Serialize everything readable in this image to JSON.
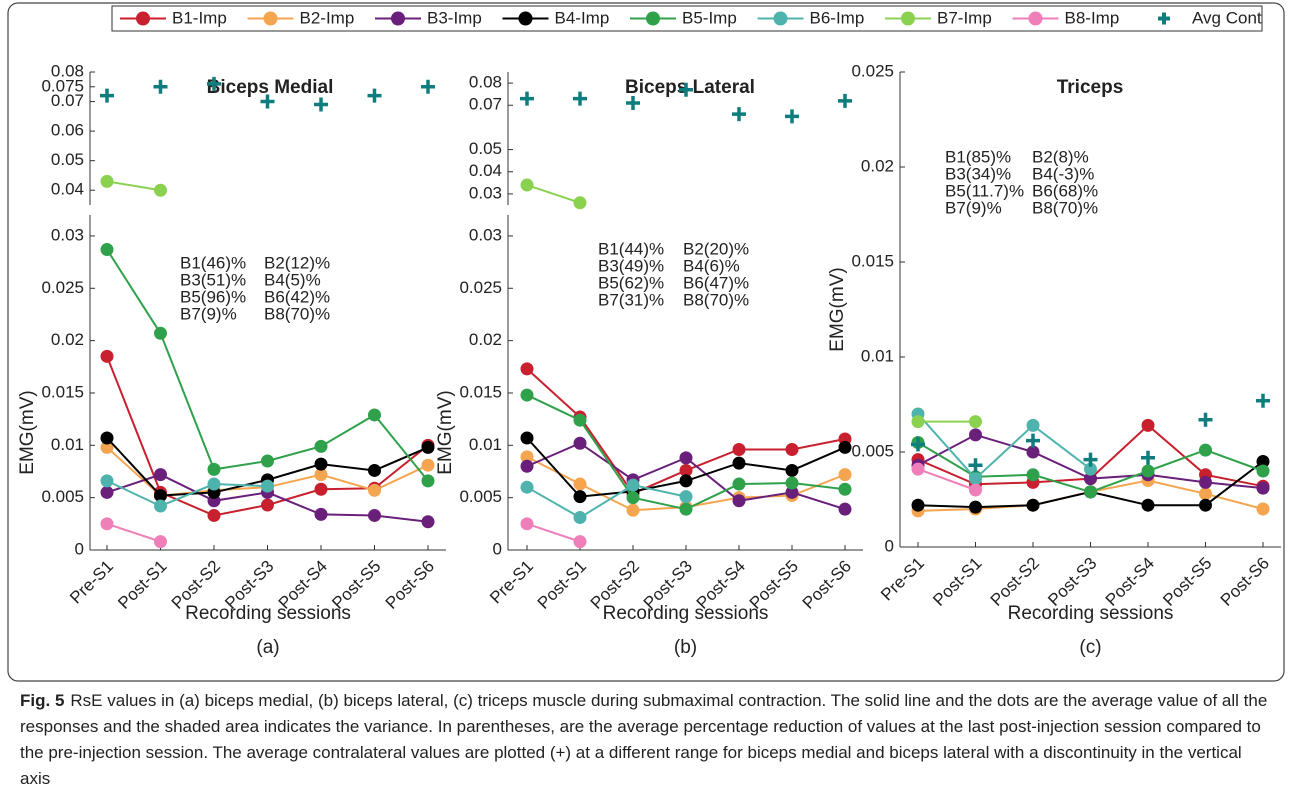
{
  "chart_data": [
    {
      "type": "line",
      "title": "Biceps Medial",
      "xlabel": "Recording sessions",
      "sublabel": "(a)",
      "ylabel": "EMG(mV)",
      "categories": [
        "Pre-S1",
        "Post-S1",
        "Post-S2",
        "Post-S3",
        "Post-S4",
        "Post-S5",
        "Post-S6"
      ],
      "ylim": [
        0,
        0.032
      ],
      "yticks": [
        0,
        0.005,
        0.01,
        0.015,
        0.02,
        0.025,
        0.03
      ],
      "ylim_upper": [
        0.035,
        0.08
      ],
      "yticks_upper": [
        0.04,
        0.05,
        0.06,
        0.07,
        0.075,
        0.08
      ],
      "series": [
        {
          "name": "B1-Imp",
          "color": "#c8202e",
          "values": [
            0.0185,
            0.0055,
            0.0033,
            0.0043,
            0.0058,
            0.0059,
            0.01
          ]
        },
        {
          "name": "B2-Imp",
          "color": "#f5a54f",
          "values": [
            0.0098,
            0.0052,
            0.0057,
            0.006,
            0.0072,
            0.0057,
            0.0081
          ]
        },
        {
          "name": "B3-Imp",
          "color": "#6a1f7a",
          "values": [
            0.0055,
            0.0072,
            0.0047,
            0.0055,
            0.0034,
            0.0033,
            0.0027
          ]
        },
        {
          "name": "B4-Imp",
          "color": "#000000",
          "values": [
            0.0107,
            0.0052,
            0.0055,
            0.0067,
            0.0082,
            0.0076,
            0.0098
          ]
        },
        {
          "name": "B5-Imp",
          "color": "#2ea14a",
          "values": [
            0.0287,
            0.0207,
            0.0077,
            0.0085,
            0.0099,
            0.0129,
            0.0066
          ]
        },
        {
          "name": "B6-Imp",
          "color": "#4fb3ad",
          "values": [
            0.0066,
            0.0042,
            0.0063,
            0.0061,
            null,
            null,
            null
          ]
        },
        {
          "name": "B7-Imp",
          "color": "#8bd150",
          "axis": "upper",
          "values": [
            0.043,
            0.04,
            null,
            null,
            null,
            null,
            null
          ]
        },
        {
          "name": "B8-Imp",
          "color": "#ef7fb8",
          "values": [
            0.0025,
            0.0008,
            null,
            null,
            null,
            null,
            null
          ]
        },
        {
          "name": "Avg Cont",
          "color": "#0f7d7d",
          "marker": "plus",
          "axis": "upper",
          "values": [
            0.072,
            0.075,
            0.076,
            0.07,
            0.069,
            0.072,
            0.075
          ]
        }
      ],
      "annotations": [
        {
          "text": "B1(46)%",
          "color": "#c8202e"
        },
        {
          "text": "B2(12)%",
          "color": "#f5a54f"
        },
        {
          "text": "B3(51)%",
          "color": "#6a1f7a"
        },
        {
          "text": "B4(5)%",
          "color": "#000000"
        },
        {
          "text": "B5(96)%",
          "color": "#2ea14a"
        },
        {
          "text": "B6(42)%",
          "color": "#4fb3ad"
        },
        {
          "text": "B7(9)%",
          "color": "#8bd150"
        },
        {
          "text": "B8(70)%",
          "color": "#ef7fb8"
        }
      ]
    },
    {
      "type": "line",
      "title": "Biceps Lateral",
      "xlabel": "Recording sessions",
      "sublabel": "(b)",
      "ylabel": "EMG(mV)",
      "categories": [
        "Pre-S1",
        "Post-S1",
        "Post-S2",
        "Post-S3",
        "Post-S4",
        "Post-S5",
        "Post-S6"
      ],
      "ylim": [
        0,
        0.032
      ],
      "yticks": [
        0,
        0.005,
        0.01,
        0.015,
        0.02,
        0.025,
        0.03
      ],
      "ylim_upper": [
        0.025,
        0.085
      ],
      "yticks_upper": [
        0.03,
        0.04,
        0.05,
        0.07,
        0.08
      ],
      "series": [
        {
          "name": "B1-Imp",
          "color": "#c8202e",
          "values": [
            0.0173,
            0.0127,
            0.0054,
            0.0076,
            0.0096,
            0.0096,
            0.0106
          ]
        },
        {
          "name": "B2-Imp",
          "color": "#f5a54f",
          "values": [
            0.0089,
            0.0063,
            0.0038,
            0.0041,
            0.005,
            0.0052,
            0.0072
          ]
        },
        {
          "name": "B3-Imp",
          "color": "#6a1f7a",
          "values": [
            0.008,
            0.0102,
            0.0067,
            0.0088,
            0.0047,
            0.0055,
            0.0039
          ]
        },
        {
          "name": "B4-Imp",
          "color": "#000000",
          "values": [
            0.0107,
            0.0051,
            0.0056,
            0.0066,
            0.0083,
            0.0076,
            0.0098
          ]
        },
        {
          "name": "B5-Imp",
          "color": "#2ea14a",
          "values": [
            0.0148,
            0.0124,
            0.005,
            0.0039,
            0.0063,
            0.0064,
            0.0058
          ]
        },
        {
          "name": "B6-Imp",
          "color": "#4fb3ad",
          "values": [
            0.006,
            0.0031,
            0.0062,
            0.0051,
            null,
            null,
            null
          ]
        },
        {
          "name": "B7-Imp",
          "color": "#8bd150",
          "axis": "upper",
          "values": [
            0.034,
            0.026,
            null,
            null,
            null,
            null,
            null
          ]
        },
        {
          "name": "B8-Imp",
          "color": "#ef7fb8",
          "values": [
            0.0025,
            0.0008,
            null,
            null,
            null,
            null,
            null
          ]
        },
        {
          "name": "Avg Cont",
          "color": "#0f7d7d",
          "marker": "plus",
          "axis": "upper",
          "values": [
            0.073,
            0.073,
            0.071,
            0.077,
            0.066,
            0.065,
            0.072
          ]
        }
      ],
      "annotations": [
        {
          "text": "B1(44)%",
          "color": "#c8202e"
        },
        {
          "text": "B2(20)%",
          "color": "#f5a54f"
        },
        {
          "text": "B3(49)%",
          "color": "#6a1f7a"
        },
        {
          "text": "B4(6)%",
          "color": "#000000"
        },
        {
          "text": "B5(62)%",
          "color": "#2ea14a"
        },
        {
          "text": "B6(47)%",
          "color": "#4fb3ad"
        },
        {
          "text": "B7(31)%",
          "color": "#8bd150"
        },
        {
          "text": "B8(70)%",
          "color": "#ef7fb8"
        }
      ]
    },
    {
      "type": "line",
      "title": "Triceps",
      "xlabel": "Recording sessions",
      "sublabel": "(c)",
      "ylabel": "EMG(mV)",
      "categories": [
        "Pre-S1",
        "Post-S1",
        "Post-S2",
        "Post-S3",
        "Post-S4",
        "Post-S5",
        "Post-S6"
      ],
      "ylim": [
        0,
        0.025
      ],
      "yticks": [
        0,
        0.005,
        0.01,
        0.015,
        0.02,
        0.025
      ],
      "series": [
        {
          "name": "B1-Imp",
          "color": "#c8202e",
          "values": [
            0.0046,
            0.0033,
            0.0034,
            0.0036,
            0.0064,
            0.0038,
            0.0032
          ]
        },
        {
          "name": "B2-Imp",
          "color": "#f5a54f",
          "values": [
            0.0019,
            0.002,
            0.0022,
            0.0029,
            0.0035,
            0.0028,
            0.002
          ]
        },
        {
          "name": "B3-Imp",
          "color": "#6a1f7a",
          "values": [
            0.0043,
            0.0059,
            0.005,
            0.0036,
            0.0038,
            0.0034,
            0.0031
          ]
        },
        {
          "name": "B4-Imp",
          "color": "#000000",
          "values": [
            0.0022,
            0.0021,
            0.0022,
            0.0029,
            0.0022,
            0.0022,
            0.0045
          ]
        },
        {
          "name": "B5-Imp",
          "color": "#2ea14a",
          "values": [
            0.0055,
            0.0037,
            0.0038,
            0.0029,
            0.004,
            0.0051,
            0.004
          ]
        },
        {
          "name": "B6-Imp",
          "color": "#4fb3ad",
          "values": [
            0.007,
            0.0036,
            0.0064,
            0.0041,
            null,
            null,
            null
          ]
        },
        {
          "name": "B7-Imp",
          "color": "#8bd150",
          "values": [
            0.0066,
            0.0066,
            null,
            null,
            null,
            null,
            null
          ]
        },
        {
          "name": "B8-Imp",
          "color": "#ef7fb8",
          "values": [
            0.0041,
            0.003,
            null,
            null,
            null,
            null,
            null
          ]
        },
        {
          "name": "Avg Cont",
          "color": "#0f7d7d",
          "marker": "plus",
          "values": [
            0.0054,
            0.0043,
            0.0056,
            0.0046,
            0.0047,
            0.0067,
            0.0077
          ]
        }
      ],
      "annotations": [
        {
          "text": "B1(85)%",
          "color": "#c8202e"
        },
        {
          "text": "B2(8)%",
          "color": "#f5a54f"
        },
        {
          "text": "B3(34)%",
          "color": "#6a1f7a"
        },
        {
          "text": "B4(-3)%",
          "color": "#000000"
        },
        {
          "text": "B5(11.7)%",
          "color": "#2ea14a"
        },
        {
          "text": "B6(68)%",
          "color": "#4fb3ad"
        },
        {
          "text": "B7(9)%",
          "color": "#8bd150"
        },
        {
          "text": "B8(70)%",
          "color": "#ef7fb8"
        }
      ]
    }
  ],
  "caption": {
    "label": "Fig. 5",
    "text": "RsE values in (a) biceps medial, (b) biceps lateral, (c) triceps muscle during submaximal contraction. The solid line and the dots are the average value of all the responses and the shaded area indicates the variance. In parentheses, are the average percentage reduction of values at the last post-injection session compared to the pre-injection session. The average contralateral values are plotted (+) at a different range for biceps medial and biceps lateral with a discontinuity in the vertical axis"
  }
}
